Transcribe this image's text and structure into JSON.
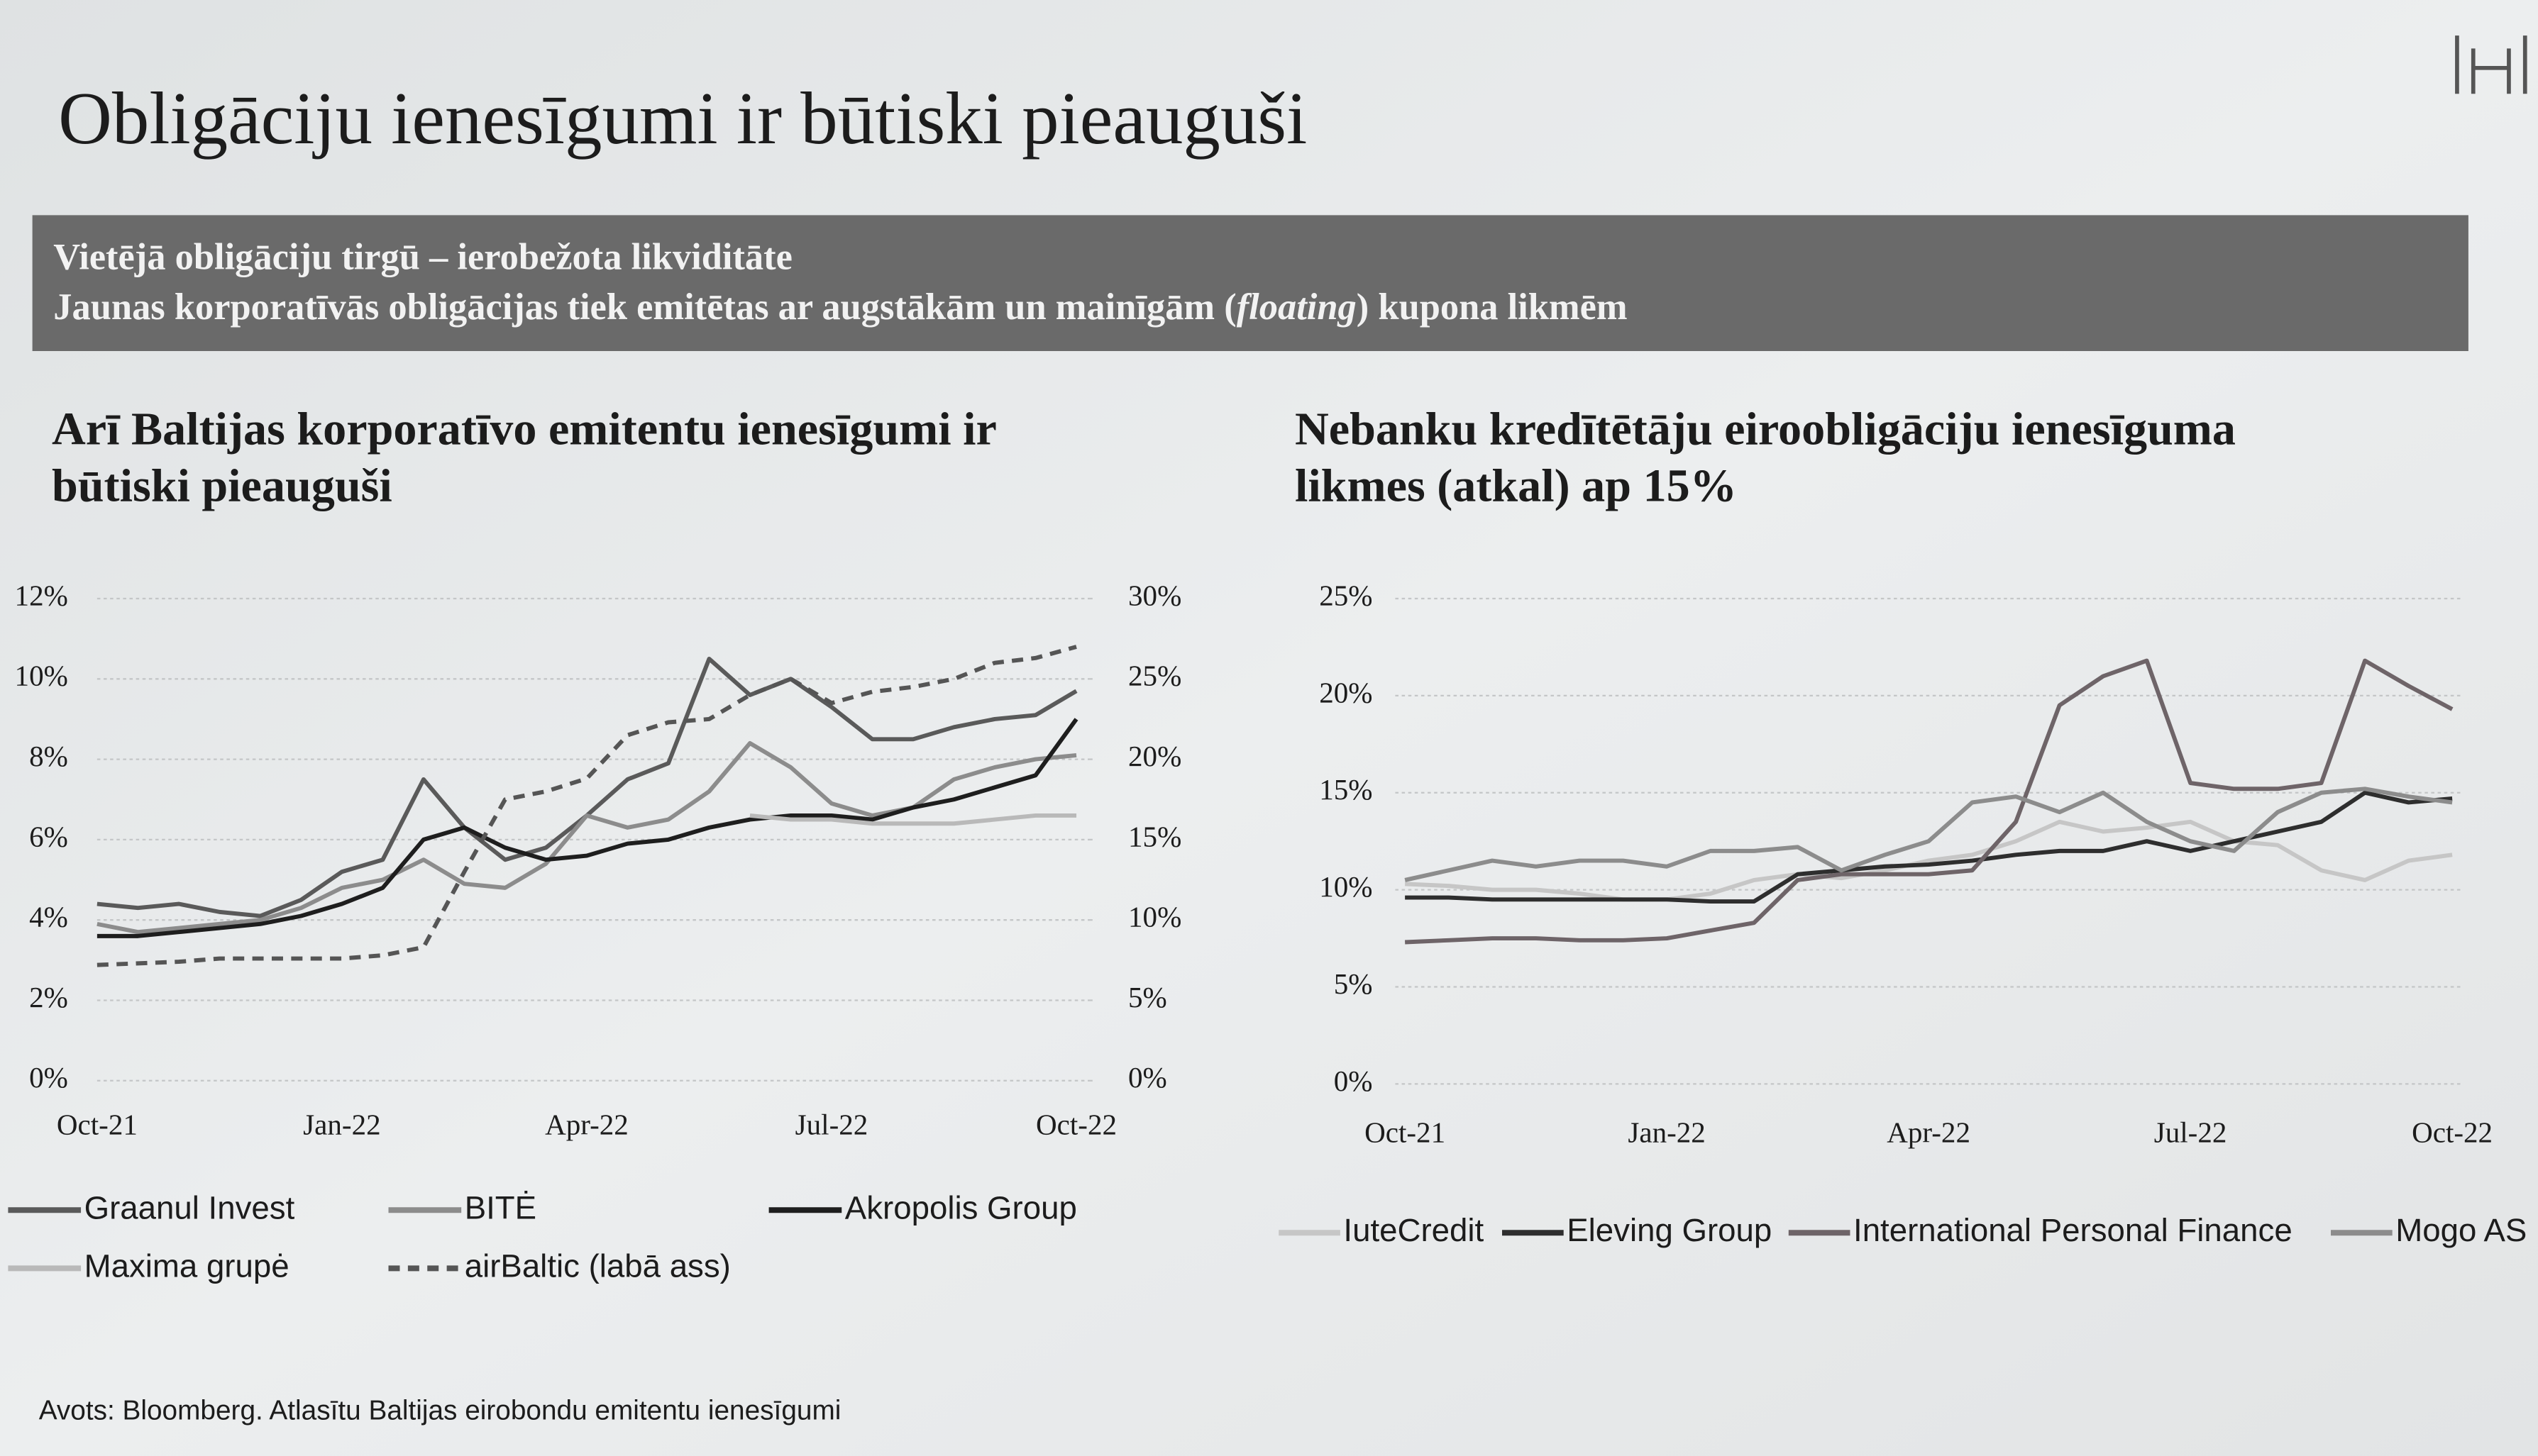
{
  "header": {
    "title": "Obligāciju ienesīgumi ir būtiski pieauguši",
    "banner": {
      "line1": "Vietējā obligāciju tirgū – ierobežota likviditāte",
      "line2": [
        "Jaunas korporatīvās obligācijas tiek emitētas ar augstākām un mainīgām (",
        "floating",
        ") kupona likmēm"
      ]
    }
  },
  "chart_data": [
    {
      "type": "line",
      "title": [
        "Arī Baltijas korporatīvo emitentu ienesīgumi ir",
        "būtiski pieauguši"
      ],
      "categories": [
        "Oct-21",
        null,
        null,
        null,
        null,
        null,
        "Jan-22",
        null,
        null,
        null,
        null,
        null,
        "Apr-22",
        null,
        null,
        null,
        null,
        null,
        "Jul-22",
        null,
        null,
        null,
        null,
        null,
        "Oct-22"
      ],
      "ylim": [
        0,
        12
      ],
      "yticks": [
        {
          "value": 0,
          "label": "0%"
        },
        {
          "value": 2,
          "label": "2%"
        },
        {
          "value": 4,
          "label": "4%"
        },
        {
          "value": 6,
          "label": "6%"
        },
        {
          "value": 8,
          "label": "8%"
        },
        {
          "value": 10,
          "label": "10%"
        },
        {
          "value": 12,
          "label": "12%"
        }
      ],
      "y2lim": [
        0,
        30
      ],
      "y2ticks": [
        {
          "value": 0,
          "label": "0%"
        },
        {
          "value": 5,
          "label": "5%"
        },
        {
          "value": 10,
          "label": "10%"
        },
        {
          "value": 15,
          "label": "15%"
        },
        {
          "value": 20,
          "label": "20%"
        },
        {
          "value": 25,
          "label": "25%"
        },
        {
          "value": 30,
          "label": "30%"
        }
      ],
      "grid": true,
      "legend": "bottom",
      "series": [
        {
          "name": "Graanul Invest",
          "color": "#5a5a5a",
          "values": [
            4.4,
            4.3,
            4.4,
            4.2,
            4.1,
            4.5,
            5.2,
            5.5,
            7.5,
            6.3,
            5.5,
            5.8,
            6.6,
            7.5,
            7.9,
            10.5,
            9.6,
            10.0,
            9.3,
            8.5,
            8.5,
            8.8,
            9.0,
            9.1,
            9.7
          ]
        },
        {
          "name": "BITĖ",
          "color": "#8c8c8c",
          "values": [
            3.9,
            3.7,
            3.8,
            3.9,
            4.0,
            4.3,
            4.8,
            5.0,
            5.5,
            4.9,
            4.8,
            5.4,
            6.6,
            6.3,
            6.5,
            7.2,
            8.4,
            7.8,
            6.9,
            6.6,
            6.8,
            7.5,
            7.8,
            8.0,
            8.1
          ]
        },
        {
          "name": "Akropolis Group",
          "color": "#1e1e1e",
          "values": [
            3.6,
            3.6,
            3.7,
            3.8,
            3.9,
            4.1,
            4.4,
            4.8,
            6.0,
            6.3,
            5.8,
            5.5,
            5.6,
            5.9,
            6.0,
            6.3,
            6.5,
            6.6,
            6.6,
            6.5,
            6.8,
            7.0,
            7.3,
            7.6,
            9.0
          ]
        },
        {
          "name": "Maxima grupė",
          "color": "#b9b9b9",
          "values": [
            null,
            null,
            null,
            null,
            null,
            null,
            null,
            null,
            null,
            null,
            null,
            null,
            null,
            null,
            null,
            null,
            6.6,
            6.5,
            6.5,
            6.4,
            6.4,
            6.4,
            6.5,
            6.6,
            6.6
          ]
        },
        {
          "name": "airBaltic (labā ass)",
          "color": "#555555",
          "dash": true,
          "axis": "y2",
          "values": [
            7.2,
            7.3,
            7.4,
            7.6,
            7.6,
            7.6,
            7.6,
            7.8,
            8.3,
            13.0,
            17.5,
            18.0,
            18.8,
            21.5,
            22.3,
            22.5,
            24.0,
            25.0,
            23.5,
            24.2,
            24.5,
            25.0,
            26.0,
            26.3,
            27.0
          ]
        }
      ]
    },
    {
      "type": "line",
      "title": [
        "Nebanku kredītētāju eiroobligāciju ienesīguma",
        "likmes (atkal) ap 15%"
      ],
      "categories": [
        "Oct-21",
        null,
        null,
        null,
        null,
        null,
        "Jan-22",
        null,
        null,
        null,
        null,
        null,
        "Apr-22",
        null,
        null,
        null,
        null,
        null,
        "Jul-22",
        null,
        null,
        null,
        null,
        null,
        "Oct-22"
      ],
      "ylim": [
        0,
        25
      ],
      "yticks": [
        {
          "value": 0,
          "label": "0%"
        },
        {
          "value": 5,
          "label": "5%"
        },
        {
          "value": 10,
          "label": "10%"
        },
        {
          "value": 15,
          "label": "15%"
        },
        {
          "value": 20,
          "label": "20%"
        },
        {
          "value": 25,
          "label": "25%"
        }
      ],
      "grid": true,
      "legend": "bottom",
      "series": [
        {
          "name": "IuteCredit",
          "color": "#c6c6c6",
          "values": [
            10.3,
            10.2,
            10.0,
            10.0,
            9.8,
            9.5,
            9.5,
            9.8,
            10.5,
            10.8,
            10.6,
            11.0,
            11.5,
            11.8,
            12.5,
            13.5,
            13.0,
            13.2,
            13.5,
            12.5,
            12.3,
            11.0,
            10.5,
            11.5,
            11.8
          ]
        },
        {
          "name": "Eleving Group",
          "color": "#2e2e2e",
          "values": [
            9.6,
            9.6,
            9.5,
            9.5,
            9.5,
            9.5,
            9.5,
            9.4,
            9.4,
            10.8,
            11.0,
            11.2,
            11.3,
            11.5,
            11.8,
            12.0,
            12.0,
            12.5,
            12.0,
            12.5,
            13.0,
            13.5,
            15.0,
            14.5,
            14.7
          ]
        },
        {
          "name": "International Personal Finance",
          "color": "#6e6468",
          "values": [
            7.3,
            7.4,
            7.5,
            7.5,
            7.4,
            7.4,
            7.5,
            7.9,
            8.3,
            10.5,
            10.8,
            10.8,
            10.8,
            11.0,
            13.5,
            19.5,
            21.0,
            21.8,
            15.5,
            15.2,
            15.2,
            15.5,
            21.8,
            20.5,
            19.3
          ]
        },
        {
          "name": "Mogo AS",
          "color": "#8c8c8c",
          "values": [
            10.5,
            11.0,
            11.5,
            11.2,
            11.5,
            11.5,
            11.2,
            12.0,
            12.0,
            12.2,
            11.0,
            11.8,
            12.5,
            14.5,
            14.8,
            14.0,
            15.0,
            13.5,
            12.5,
            12.0,
            14.0,
            15.0,
            15.2,
            14.8,
            14.5
          ]
        }
      ]
    }
  ],
  "footer": {
    "source": "Avots: Bloomberg. Atlasītu Baltijas eirobondu emitentu ienesīgumi"
  }
}
